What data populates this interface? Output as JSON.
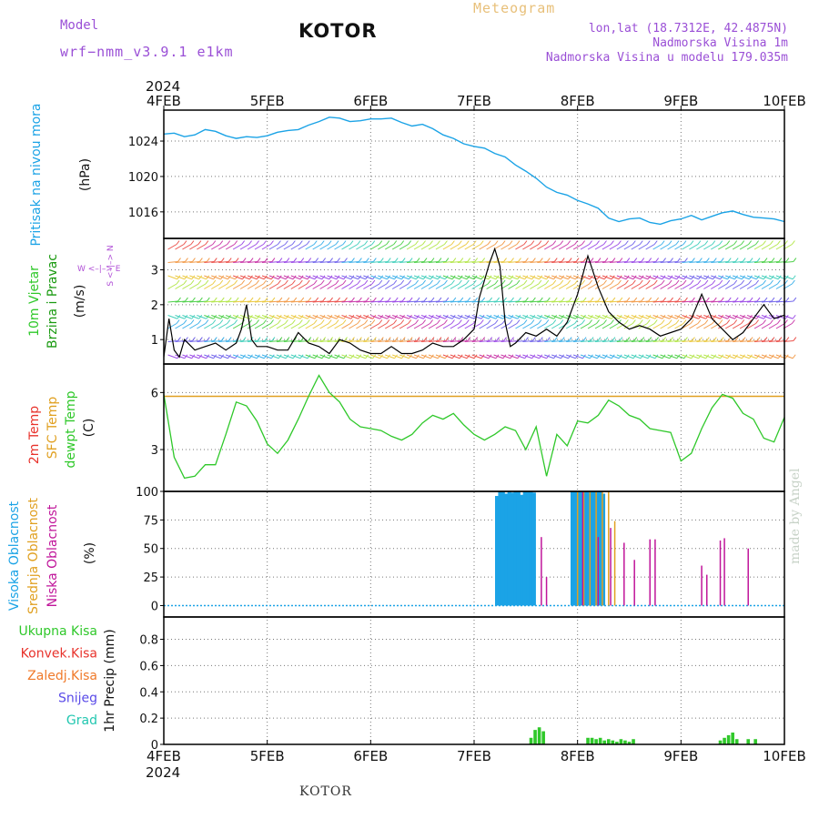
{
  "header": {
    "model_label": "Model",
    "model_value": "wrf−nmm_v3.9.1 e1km",
    "title": "KOTOR",
    "meteogram_label": "Meteogram",
    "lonlat": "lon,lat (18.7312E, 42.4875N)",
    "altitude": "Nadmorska Visina 1m",
    "model_altitude": "Nadmorska Visina u modelu 179.035m"
  },
  "footer": {
    "station": "KOTOR",
    "made_by": "made by Angel"
  },
  "time_axis": {
    "year": "2024",
    "ticks": [
      "4FEB",
      "5FEB",
      "6FEB",
      "7FEB",
      "8FEB",
      "9FEB",
      "10FEB"
    ]
  },
  "colors": {
    "pressure": "#1ba3e6",
    "temp2m": "#e8332c",
    "sfc": "#e0a020",
    "dewpt": "#2fc82a",
    "high_cloud": "#1ba3e6",
    "mid_cloud": "#e0a020",
    "low_cloud": "#c0159a",
    "precip_total": "#2fc82a",
    "conv": "#e8332c",
    "frz": "#f07a2a",
    "snow": "#5a4be8",
    "hail": "#22c7b0",
    "wind_compass": "#b04fd6",
    "wind_label_a": "#2fc82a",
    "wind_label_b": "#1a9a10"
  },
  "panels": {
    "pressure": {
      "label": "Pritisak na nivou mora",
      "unit": "(hPa)",
      "ticks": [
        "1016",
        "1020",
        "1024"
      ]
    },
    "wind": {
      "label1": "10m Vjetar",
      "label2": "Brzina i Pravac",
      "unit": "(m/s)",
      "compass1": "W <–|–> E",
      "compass2": "S <–|–> N",
      "ticks": [
        "1",
        "2",
        "3"
      ]
    },
    "temp": {
      "label1": "2m Temp",
      "label2": "SFC Temp",
      "label3": "dewpt Temp",
      "unit": "(C)",
      "ticks": [
        "3",
        "6"
      ]
    },
    "cloud": {
      "label1": "Visoka Oblacnost",
      "label2": "Srednja Oblacnost",
      "label3": "Niska Oblacnost",
      "unit": "(%)",
      "ticks": [
        "0",
        "25",
        "50",
        "75",
        "100"
      ]
    },
    "precip": {
      "label": "1hr Precip (mm)",
      "ticks": [
        "0",
        "0.2",
        "0.4",
        "0.6",
        "0.8"
      ],
      "legend": [
        "Ukupna Kisa",
        "Konvek.Kisa",
        "Zaledj.Kisa",
        "Snijeg",
        "Grad"
      ]
    }
  },
  "chart_data": [
    {
      "type": "line",
      "name": "pressure",
      "ylabel": "Pritisak na nivou mora (hPa)",
      "ylim": [
        1013,
        1027.5
      ],
      "x": [
        0,
        0.1,
        0.2,
        0.3,
        0.4,
        0.5,
        0.6,
        0.7,
        0.8,
        0.9,
        1.0,
        1.1,
        1.2,
        1.3,
        1.4,
        1.5,
        1.6,
        1.7,
        1.8,
        1.9,
        2.0,
        2.1,
        2.2,
        2.3,
        2.4,
        2.5,
        2.6,
        2.7,
        2.8,
        2.9,
        3.0,
        3.1,
        3.2,
        3.3,
        3.4,
        3.5,
        3.6,
        3.7,
        3.8,
        3.9,
        4.0,
        4.1,
        4.2,
        4.3,
        4.4,
        4.5,
        4.6,
        4.7,
        4.8,
        4.9,
        5.0,
        5.1,
        5.2,
        5.3,
        5.4,
        5.5,
        5.6,
        5.7,
        5.8,
        5.9,
        6.0
      ],
      "series": [
        {
          "values": [
            1024.8,
            1024.9,
            1024.5,
            1024.7,
            1025.3,
            1025.1,
            1024.6,
            1024.3,
            1024.5,
            1024.4,
            1024.6,
            1025.0,
            1025.2,
            1025.3,
            1025.8,
            1026.2,
            1026.7,
            1026.6,
            1026.2,
            1026.3,
            1026.5,
            1026.5,
            1026.6,
            1026.1,
            1025.7,
            1025.9,
            1025.4,
            1024.7,
            1024.3,
            1023.7,
            1023.4,
            1023.2,
            1022.6,
            1022.2,
            1021.3,
            1020.6,
            1019.8,
            1018.8,
            1018.2,
            1017.9,
            1017.3,
            1016.9,
            1016.4,
            1015.3,
            1014.9,
            1015.2,
            1015.3,
            1014.8,
            1014.6,
            1015.0,
            1015.2,
            1015.6,
            1015.1,
            1015.5,
            1015.9,
            1016.1,
            1015.7,
            1015.4,
            1015.3,
            1015.2,
            1014.9
          ]
        }
      ]
    },
    {
      "type": "line",
      "name": "wind",
      "ylabel": "10m Vjetar Brzina i Pravac (m/s)",
      "ylim": [
        0.3,
        3.9
      ],
      "x": [
        0,
        0.05,
        0.1,
        0.15,
        0.2,
        0.3,
        0.4,
        0.5,
        0.6,
        0.7,
        0.75,
        0.8,
        0.85,
        0.9,
        1.0,
        1.1,
        1.2,
        1.3,
        1.4,
        1.5,
        1.6,
        1.7,
        1.8,
        1.9,
        2.0,
        2.1,
        2.2,
        2.3,
        2.4,
        2.5,
        2.6,
        2.7,
        2.8,
        2.9,
        3.0,
        3.05,
        3.1,
        3.15,
        3.2,
        3.25,
        3.3,
        3.35,
        3.4,
        3.5,
        3.6,
        3.7,
        3.8,
        3.9,
        4.0,
        4.1,
        4.2,
        4.3,
        4.4,
        4.5,
        4.6,
        4.7,
        4.8,
        4.9,
        5.0,
        5.1,
        5.2,
        5.3,
        5.4,
        5.5,
        5.6,
        5.7,
        5.8,
        5.9,
        6.0
      ],
      "series": [
        {
          "values": [
            0.5,
            1.6,
            0.7,
            0.5,
            1.0,
            0.7,
            0.8,
            0.9,
            0.7,
            0.9,
            1.3,
            2.0,
            1.0,
            0.8,
            0.8,
            0.7,
            0.7,
            1.2,
            0.9,
            0.8,
            0.6,
            1.0,
            0.9,
            0.7,
            0.6,
            0.6,
            0.8,
            0.6,
            0.6,
            0.7,
            0.9,
            0.8,
            0.8,
            1.0,
            1.3,
            2.2,
            2.7,
            3.2,
            3.6,
            3.1,
            1.5,
            0.8,
            0.9,
            1.2,
            1.1,
            1.3,
            1.1,
            1.5,
            2.3,
            3.4,
            2.5,
            1.8,
            1.5,
            1.3,
            1.4,
            1.3,
            1.1,
            1.2,
            1.3,
            1.6,
            2.3,
            1.6,
            1.3,
            1.0,
            1.2,
            1.6,
            2.0,
            1.6,
            1.7
          ]
        }
      ]
    },
    {
      "type": "line",
      "name": "temperature",
      "ylabel": "2m Temp / SFC Temp / dewpt Temp (C)",
      "ylim": [
        0.8,
        7.5
      ],
      "x": [
        0,
        0.1,
        0.2,
        0.3,
        0.4,
        0.5,
        0.6,
        0.7,
        0.8,
        0.9,
        1.0,
        1.1,
        1.2,
        1.3,
        1.4,
        1.5,
        1.6,
        1.7,
        1.8,
        1.9,
        2.0,
        2.1,
        2.2,
        2.3,
        2.4,
        2.5,
        2.6,
        2.7,
        2.8,
        2.9,
        3.0,
        3.1,
        3.2,
        3.3,
        3.4,
        3.5,
        3.6,
        3.7,
        3.8,
        3.9,
        4.0,
        4.1,
        4.2,
        4.3,
        4.4,
        4.5,
        4.6,
        4.7,
        4.8,
        4.9,
        5.0,
        5.1,
        5.2,
        5.3,
        5.4,
        5.5,
        5.6,
        5.7,
        5.8,
        5.9,
        6.0
      ],
      "series": [
        {
          "name": "SFC Temp",
          "values": [
            5.8,
            5.8,
            5.8,
            5.8,
            5.8,
            5.8,
            5.8,
            5.8,
            5.8,
            5.8,
            5.8,
            5.8,
            5.8,
            5.8,
            5.8,
            5.8,
            5.8,
            5.8,
            5.8,
            5.8,
            5.8,
            5.8,
            5.8,
            5.8,
            5.8,
            5.8,
            5.8,
            5.8,
            5.8,
            5.8,
            5.8,
            5.8,
            5.8,
            5.8,
            5.8,
            5.8,
            5.8,
            5.8,
            5.8,
            5.8,
            5.8,
            5.8,
            5.8,
            5.8,
            5.8,
            5.8,
            5.8,
            5.8,
            5.8,
            5.8,
            5.8,
            5.8,
            5.8,
            5.8,
            5.8,
            5.8,
            5.8,
            5.8,
            5.8,
            5.8,
            5.8
          ]
        },
        {
          "name": "dewpt Temp",
          "values": [
            5.9,
            2.6,
            1.5,
            1.6,
            2.2,
            2.2,
            3.8,
            5.5,
            5.3,
            4.5,
            3.3,
            2.8,
            3.5,
            4.6,
            5.8,
            6.9,
            6.0,
            5.5,
            4.6,
            4.2,
            4.1,
            4.0,
            3.7,
            3.5,
            3.8,
            4.4,
            4.8,
            4.6,
            4.9,
            4.3,
            3.8,
            3.5,
            3.8,
            4.2,
            4.0,
            3.0,
            4.2,
            1.6,
            3.8,
            3.2,
            4.5,
            4.4,
            4.8,
            5.6,
            5.3,
            4.8,
            4.6,
            4.1,
            4.0,
            3.9,
            2.4,
            2.8,
            4.1,
            5.2,
            5.9,
            5.7,
            4.9,
            4.6,
            3.6,
            3.4,
            4.7
          ]
        }
      ]
    },
    {
      "type": "bar",
      "name": "cloud_cover",
      "ylabel": "Oblacnost (%)",
      "ylim": [
        -10,
        100
      ],
      "series": [
        {
          "name": "Visoka Oblacnost",
          "x": [
            3.22,
            3.25,
            3.28,
            3.31,
            3.34,
            3.37,
            3.4,
            3.43,
            3.46,
            3.49,
            3.52,
            3.55,
            3.58,
            3.95,
            3.98,
            4.01,
            4.04,
            4.07,
            4.1,
            4.13,
            4.16,
            4.19,
            4.22,
            4.25
          ],
          "values": [
            96,
            100,
            100,
            98,
            100,
            99,
            100,
            100,
            97,
            100,
            100,
            100,
            99,
            100,
            100,
            100,
            100,
            100,
            100,
            100,
            100,
            100,
            100,
            98
          ]
        },
        {
          "name": "Srednja Oblacnost",
          "x": [
            4.0,
            4.06,
            4.12,
            4.18,
            4.24,
            4.3,
            4.36
          ],
          "values": [
            100,
            100,
            100,
            100,
            100,
            100,
            74
          ]
        },
        {
          "name": "Niska Oblacnost",
          "x": [
            3.65,
            3.7,
            4.05,
            4.2,
            4.32,
            4.45,
            4.55,
            4.7,
            4.75,
            5.2,
            5.25,
            5.38,
            5.42,
            5.65
          ],
          "values": [
            60,
            25,
            100,
            60,
            68,
            55,
            40,
            58,
            58,
            35,
            27,
            57,
            59,
            50
          ]
        }
      ]
    },
    {
      "type": "bar",
      "name": "precip",
      "ylabel": "1hr Precip (mm)",
      "ylim": [
        0,
        0.97
      ],
      "series": [
        {
          "name": "Ukupna Kisa",
          "x": [
            3.55,
            3.59,
            3.63,
            3.67,
            4.1,
            4.14,
            4.18,
            4.22,
            4.26,
            4.3,
            4.34,
            4.38,
            4.42,
            4.46,
            4.5,
            4.54,
            5.38,
            5.42,
            5.46,
            5.5,
            5.54,
            5.65,
            5.72
          ],
          "values": [
            0.05,
            0.11,
            0.13,
            0.1,
            0.05,
            0.05,
            0.04,
            0.05,
            0.03,
            0.04,
            0.03,
            0.02,
            0.04,
            0.03,
            0.02,
            0.04,
            0.03,
            0.05,
            0.07,
            0.09,
            0.04,
            0.04,
            0.04
          ]
        }
      ]
    }
  ]
}
